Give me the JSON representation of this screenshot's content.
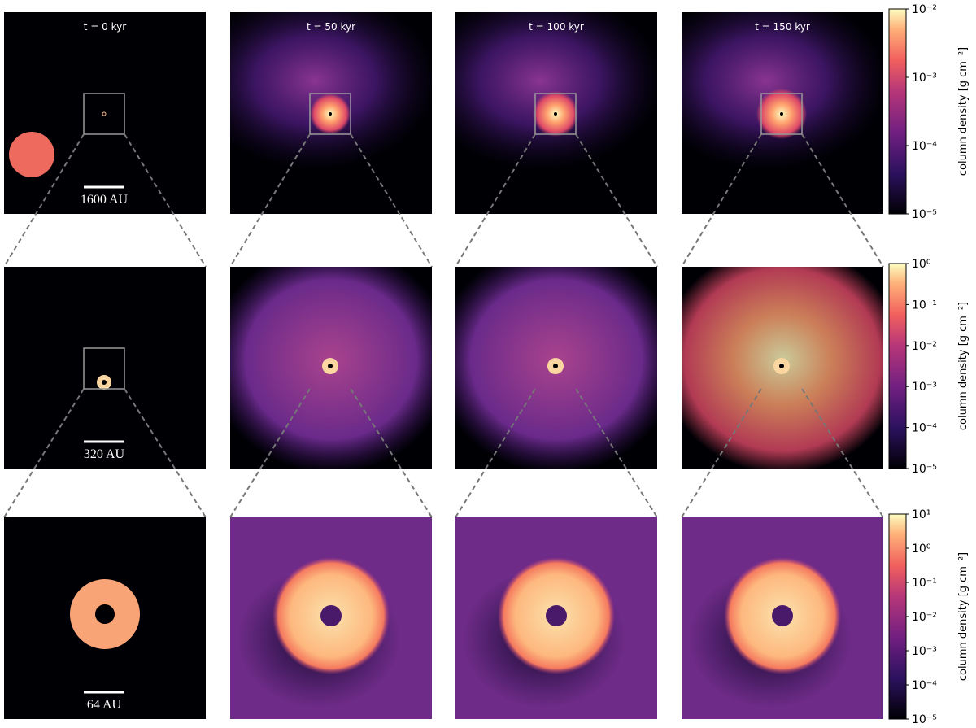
{
  "time_labels": [
    "t = 0 kyr",
    "t = 50 kyr",
    "t = 100 kyr",
    "t = 150 kyr"
  ],
  "scale_bars": [
    "1600 AU",
    "320 AU",
    "64 AU"
  ],
  "colorbars": [
    {
      "label": "column density [g cm⁻²]",
      "log": true,
      "lim": [
        1e-05,
        0.01
      ],
      "ticks": [
        {
          "value": 1e-05,
          "label": "10⁻⁵"
        },
        {
          "value": 0.0001,
          "label": "10⁻⁴"
        },
        {
          "value": 0.001,
          "label": "10⁻³"
        },
        {
          "value": 0.01,
          "label": "10⁻²"
        }
      ]
    },
    {
      "label": "column density [g cm⁻²]",
      "log": true,
      "lim": [
        1e-05,
        1
      ],
      "ticks": [
        {
          "value": 1e-05,
          "label": "10⁻⁵"
        },
        {
          "value": 0.0001,
          "label": "10⁻⁴"
        },
        {
          "value": 0.001,
          "label": "10⁻³"
        },
        {
          "value": 0.01,
          "label": "10⁻²"
        },
        {
          "value": 0.1,
          "label": "10⁻¹"
        },
        {
          "value": 1,
          "label": "10⁰"
        }
      ]
    },
    {
      "label": "column density [g cm⁻²]",
      "log": true,
      "lim": [
        1e-05,
        10
      ],
      "ticks": [
        {
          "value": 1e-05,
          "label": "10⁻⁵"
        },
        {
          "value": 0.0001,
          "label": "10⁻⁴"
        },
        {
          "value": 0.001,
          "label": "10⁻³"
        },
        {
          "value": 0.01,
          "label": "10⁻²"
        },
        {
          "value": 0.1,
          "label": "10⁻¹"
        },
        {
          "value": 1,
          "label": "10⁰"
        },
        {
          "value": 10,
          "label": "10¹"
        }
      ]
    }
  ]
}
